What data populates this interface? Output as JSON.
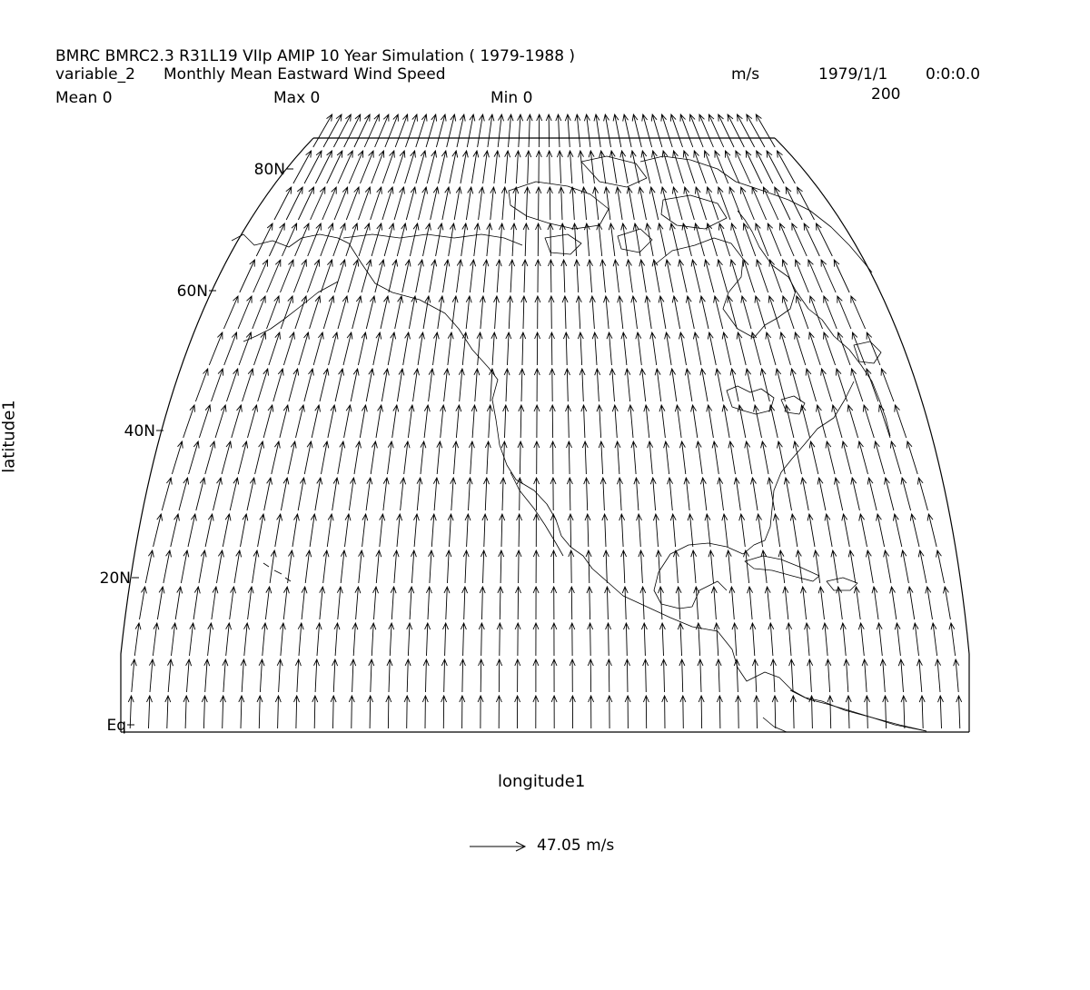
{
  "header": {
    "line1": "BMRC BMRC2.3 R31L19 VIIp AMIP 10 Year Simulation ( 1979-1988 )",
    "variable": "variable_2",
    "long_name": "Monthly Mean Eastward Wind Speed",
    "units": "m/s",
    "date": "1979/1/1",
    "time": "0:0:0.0",
    "level": "200",
    "mean": "Mean 0",
    "max": "Max 0",
    "min": "Min 0"
  },
  "axes": {
    "ylabel": "latitude1",
    "xlabel": "longitude1",
    "lat_ticks": [
      "80N",
      "60N",
      "40N",
      "20N",
      "Eq"
    ]
  },
  "reference_vector": {
    "label": "47.05 m/s"
  },
  "chart_data": {
    "type": "vector-field",
    "title": "Monthly Mean Eastward Wind Speed",
    "units": "m/s",
    "lat_range": [
      0,
      90
    ],
    "statistics": {
      "mean": 0,
      "max": 0,
      "min": 0
    },
    "vector_direction": "northward",
    "reference_vector_magnitude": 47.05,
    "projection": "orthographic-like, North America sector",
    "colors": {
      "lines": "#000000",
      "background": "#ffffff"
    }
  }
}
